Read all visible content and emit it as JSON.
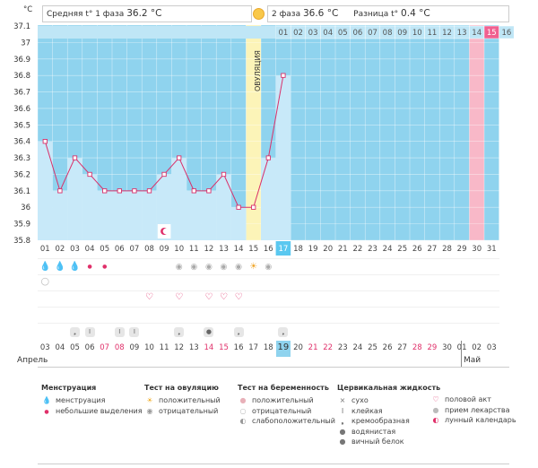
{
  "header": {
    "phase1_label": "Средняя t° 1 фаза",
    "phase1_value": "36.2 °C",
    "phase2_label": "2 фаза",
    "phase2_value": "36.6 °C",
    "diff_label": "Разница t°",
    "diff_value": "0.4 °C",
    "unit": "°C",
    "ovulation_label": "ОВУЛЯЦИЯ"
  },
  "chart_data": {
    "type": "line",
    "ylabel": "°C",
    "ylim": [
      35.8,
      37.15
    ],
    "y_ticks": [
      "37.1",
      "37",
      "36.9",
      "36.8",
      "36.7",
      "36.6",
      "36.5",
      "36.4",
      "36.3",
      "36.2",
      "36.1",
      "36",
      "35.9",
      "35.8"
    ],
    "cycle_days": [
      "01",
      "02",
      "03",
      "04",
      "05",
      "06",
      "07",
      "08",
      "09",
      "10",
      "11",
      "12",
      "13",
      "14",
      "15",
      "16",
      "17",
      "18",
      "19",
      "20",
      "21",
      "22",
      "23",
      "24",
      "25",
      "26",
      "27",
      "28",
      "29",
      "30",
      "31"
    ],
    "top_days": [
      "01",
      "02",
      "03",
      "04",
      "05",
      "06",
      "07",
      "08",
      "09",
      "10",
      "11",
      "12",
      "13",
      "14",
      "15",
      "16"
    ],
    "values": [
      36.4,
      36.1,
      36.3,
      36.2,
      36.1,
      36.1,
      36.1,
      36.1,
      36.2,
      36.3,
      36.1,
      36.1,
      36.2,
      36.0,
      36.0,
      36.3,
      36.8
    ],
    "ovulation_day": 15,
    "today_day": "17",
    "pink_top_day": "15",
    "line_color": "#d9306a"
  },
  "calendar": {
    "dates": [
      "03",
      "04",
      "05",
      "06",
      "07",
      "08",
      "09",
      "10",
      "11",
      "12",
      "13",
      "14",
      "15",
      "16",
      "17",
      "18",
      "19",
      "20",
      "21",
      "22",
      "23",
      "24",
      "25",
      "26",
      "27",
      "28",
      "29",
      "30",
      "01",
      "02",
      "03"
    ],
    "red_dates": [
      "07",
      "08",
      "14",
      "15",
      "21",
      "22",
      "28",
      "29"
    ],
    "highlight_date": "19",
    "month_april": "Апрель",
    "month_may": "Май"
  },
  "legend": {
    "menstruation": {
      "title": "Менструация",
      "items": [
        "менструация",
        "небольшие выделения"
      ]
    },
    "ovulation_test": {
      "title": "Тест на овуляцию",
      "items": [
        "положительный",
        "отрицательный"
      ]
    },
    "pregnancy_test": {
      "title": "Тест на беременность",
      "items": [
        "положительный",
        "отрицательный",
        "слабоположительный"
      ]
    },
    "cervical": {
      "title": "Цервикальная жидкость",
      "items": [
        "сухо",
        "клейкая",
        "кремообразная",
        "водянистая",
        "вичный белок"
      ]
    },
    "other": {
      "items": [
        "половой акт",
        "прием лекарства",
        "лунный календарь"
      ]
    }
  },
  "colors": {
    "sky": "#8fd3ee",
    "bar": "#c8e9f9",
    "ovulation": "#fcf4b8",
    "pink": "#f8b8c8",
    "today": "#5ac8f0"
  }
}
